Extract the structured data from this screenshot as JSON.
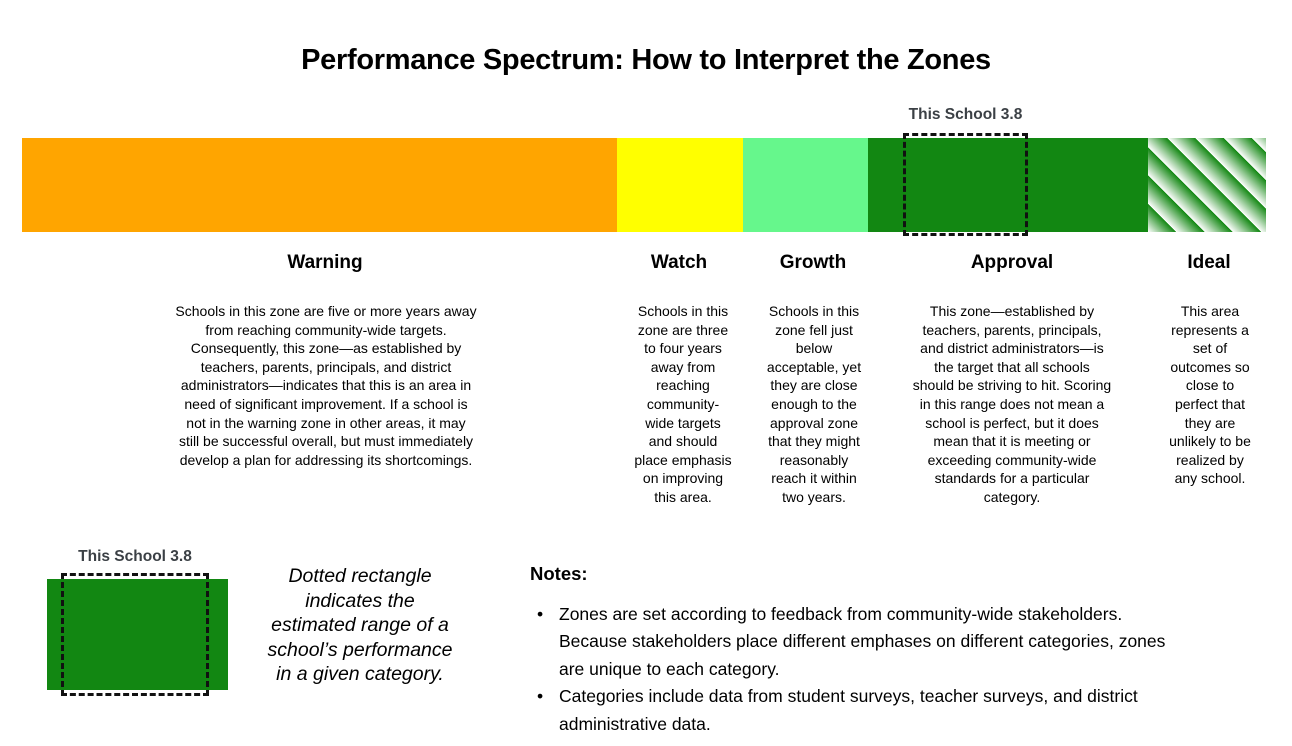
{
  "title": "Performance Spectrum: How to Interpret the Zones",
  "school_marker": {
    "label": "This School 3.8"
  },
  "zones": [
    {
      "name": "Warning",
      "color": "#FFA500",
      "description": "Schools in this zone are five or more years away\nfrom reaching community-wide targets.\nConsequently, this zone—as established by\nteachers, parents, principals, and district\nadministrators—indicates that this is an area in\nneed of significant improvement. If a school is\nnot in the warning zone in other areas, it may\nstill be successful overall, but must immediately\ndevelop a plan for addressing its shortcomings."
    },
    {
      "name": "Watch",
      "color": "#FFFF00",
      "description": "Schools in this\nzone are three\nto four years\naway from\nreaching\ncommunity-\nwide targets\nand should\nplace emphasis\non improving\nthis area."
    },
    {
      "name": "Growth",
      "color": "#66F78C",
      "description": "Schools in this\nzone fell just\nbelow\nacceptable, yet\nthey are close\nenough to the\napproval zone\nthat they might\nreasonably\nreach it within\ntwo years."
    },
    {
      "name": "Approval",
      "color": "#128712",
      "description": "This zone—established by\nteachers, parents, principals,\nand district administrators—is\nthe target that all schools\nshould be striving to hit. Scoring\nin this range does not mean a\nschool is perfect, but it does\nmean that it is meeting or\nexceeding community-wide\nstandards for a particular\ncategory."
    },
    {
      "name": "Ideal",
      "color": "striped #128712 / #FFFFFF",
      "description": "This area\nrepresents a\nset of\noutcomes so\nclose to\nperfect that\nthey are\nunlikely to be\nrealized by\nany school."
    }
  ],
  "legend": {
    "marker_label": "This School 3.8",
    "caption": "Dotted rectangle\nindicates the\nestimated range of a\nschool’s performance\nin a given category."
  },
  "notes": {
    "heading": "Notes:",
    "items": [
      "Zones are set according to feedback from community-wide stakeholders.\nBecause stakeholders place different emphases on different categories, zones\nare unique to each category.",
      "Categories include data from student surveys, teacher surveys, and district\nadministrative data."
    ]
  },
  "colors": {
    "warning_orange": "#FFA500",
    "watch_yellow": "#FFFF00",
    "growth_green": "#66F78C",
    "approval_green": "#128712",
    "ideal_stripe_green": "#128712",
    "ideal_stripe_white": "#FFFFFF",
    "marker_label_gray": "#3B4045",
    "marker_dash_black": "#111111"
  }
}
